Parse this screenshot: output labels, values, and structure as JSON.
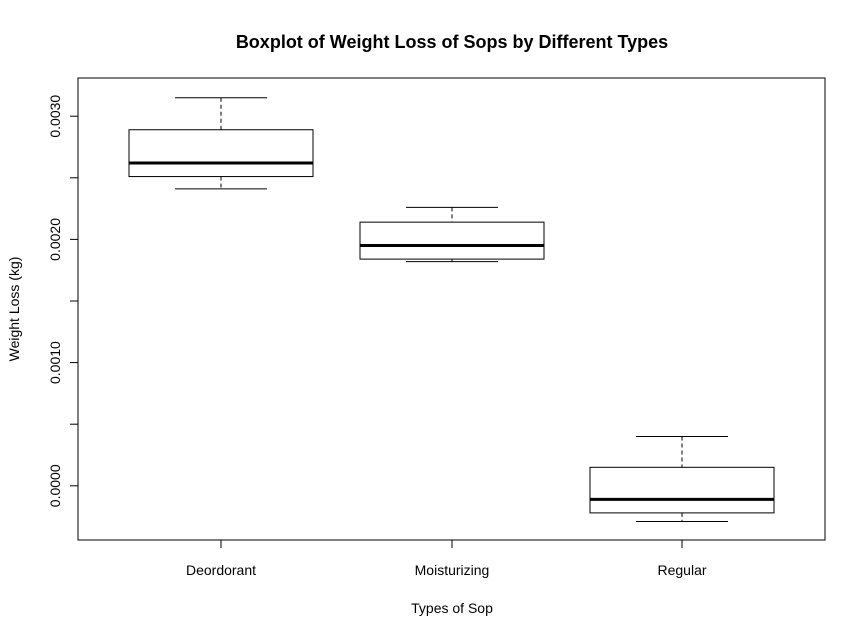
{
  "chart_data": {
    "type": "boxplot",
    "title": "Boxplot of Weight Loss of Sops by Different Types",
    "xlabel": "Types of Sop",
    "ylabel": "Weight Loss (kg)",
    "ylim": [
      -0.00044,
      0.00331
    ],
    "yticks": [
      0.0,
      0.001,
      0.002,
      0.003
    ],
    "ytick_labels": [
      "0.0000",
      "0.0010",
      "0.0020",
      "0.0030"
    ],
    "categories": [
      "Deordorant",
      "Moisturizing",
      "Regular"
    ],
    "boxes": [
      {
        "name": "Deordorant",
        "min": 0.00241,
        "q1": 0.00251,
        "median": 0.00262,
        "q3": 0.00289,
        "max": 0.00315
      },
      {
        "name": "Moisturizing",
        "min": 0.00182,
        "q1": 0.00184,
        "median": 0.00195,
        "q3": 0.00214,
        "max": 0.00226
      },
      {
        "name": "Regular",
        "min": -0.00029,
        "q1": -0.00022,
        "median": -0.00011,
        "q3": 0.00015,
        "max": 0.0004
      }
    ],
    "grid": false,
    "legend": "none"
  }
}
